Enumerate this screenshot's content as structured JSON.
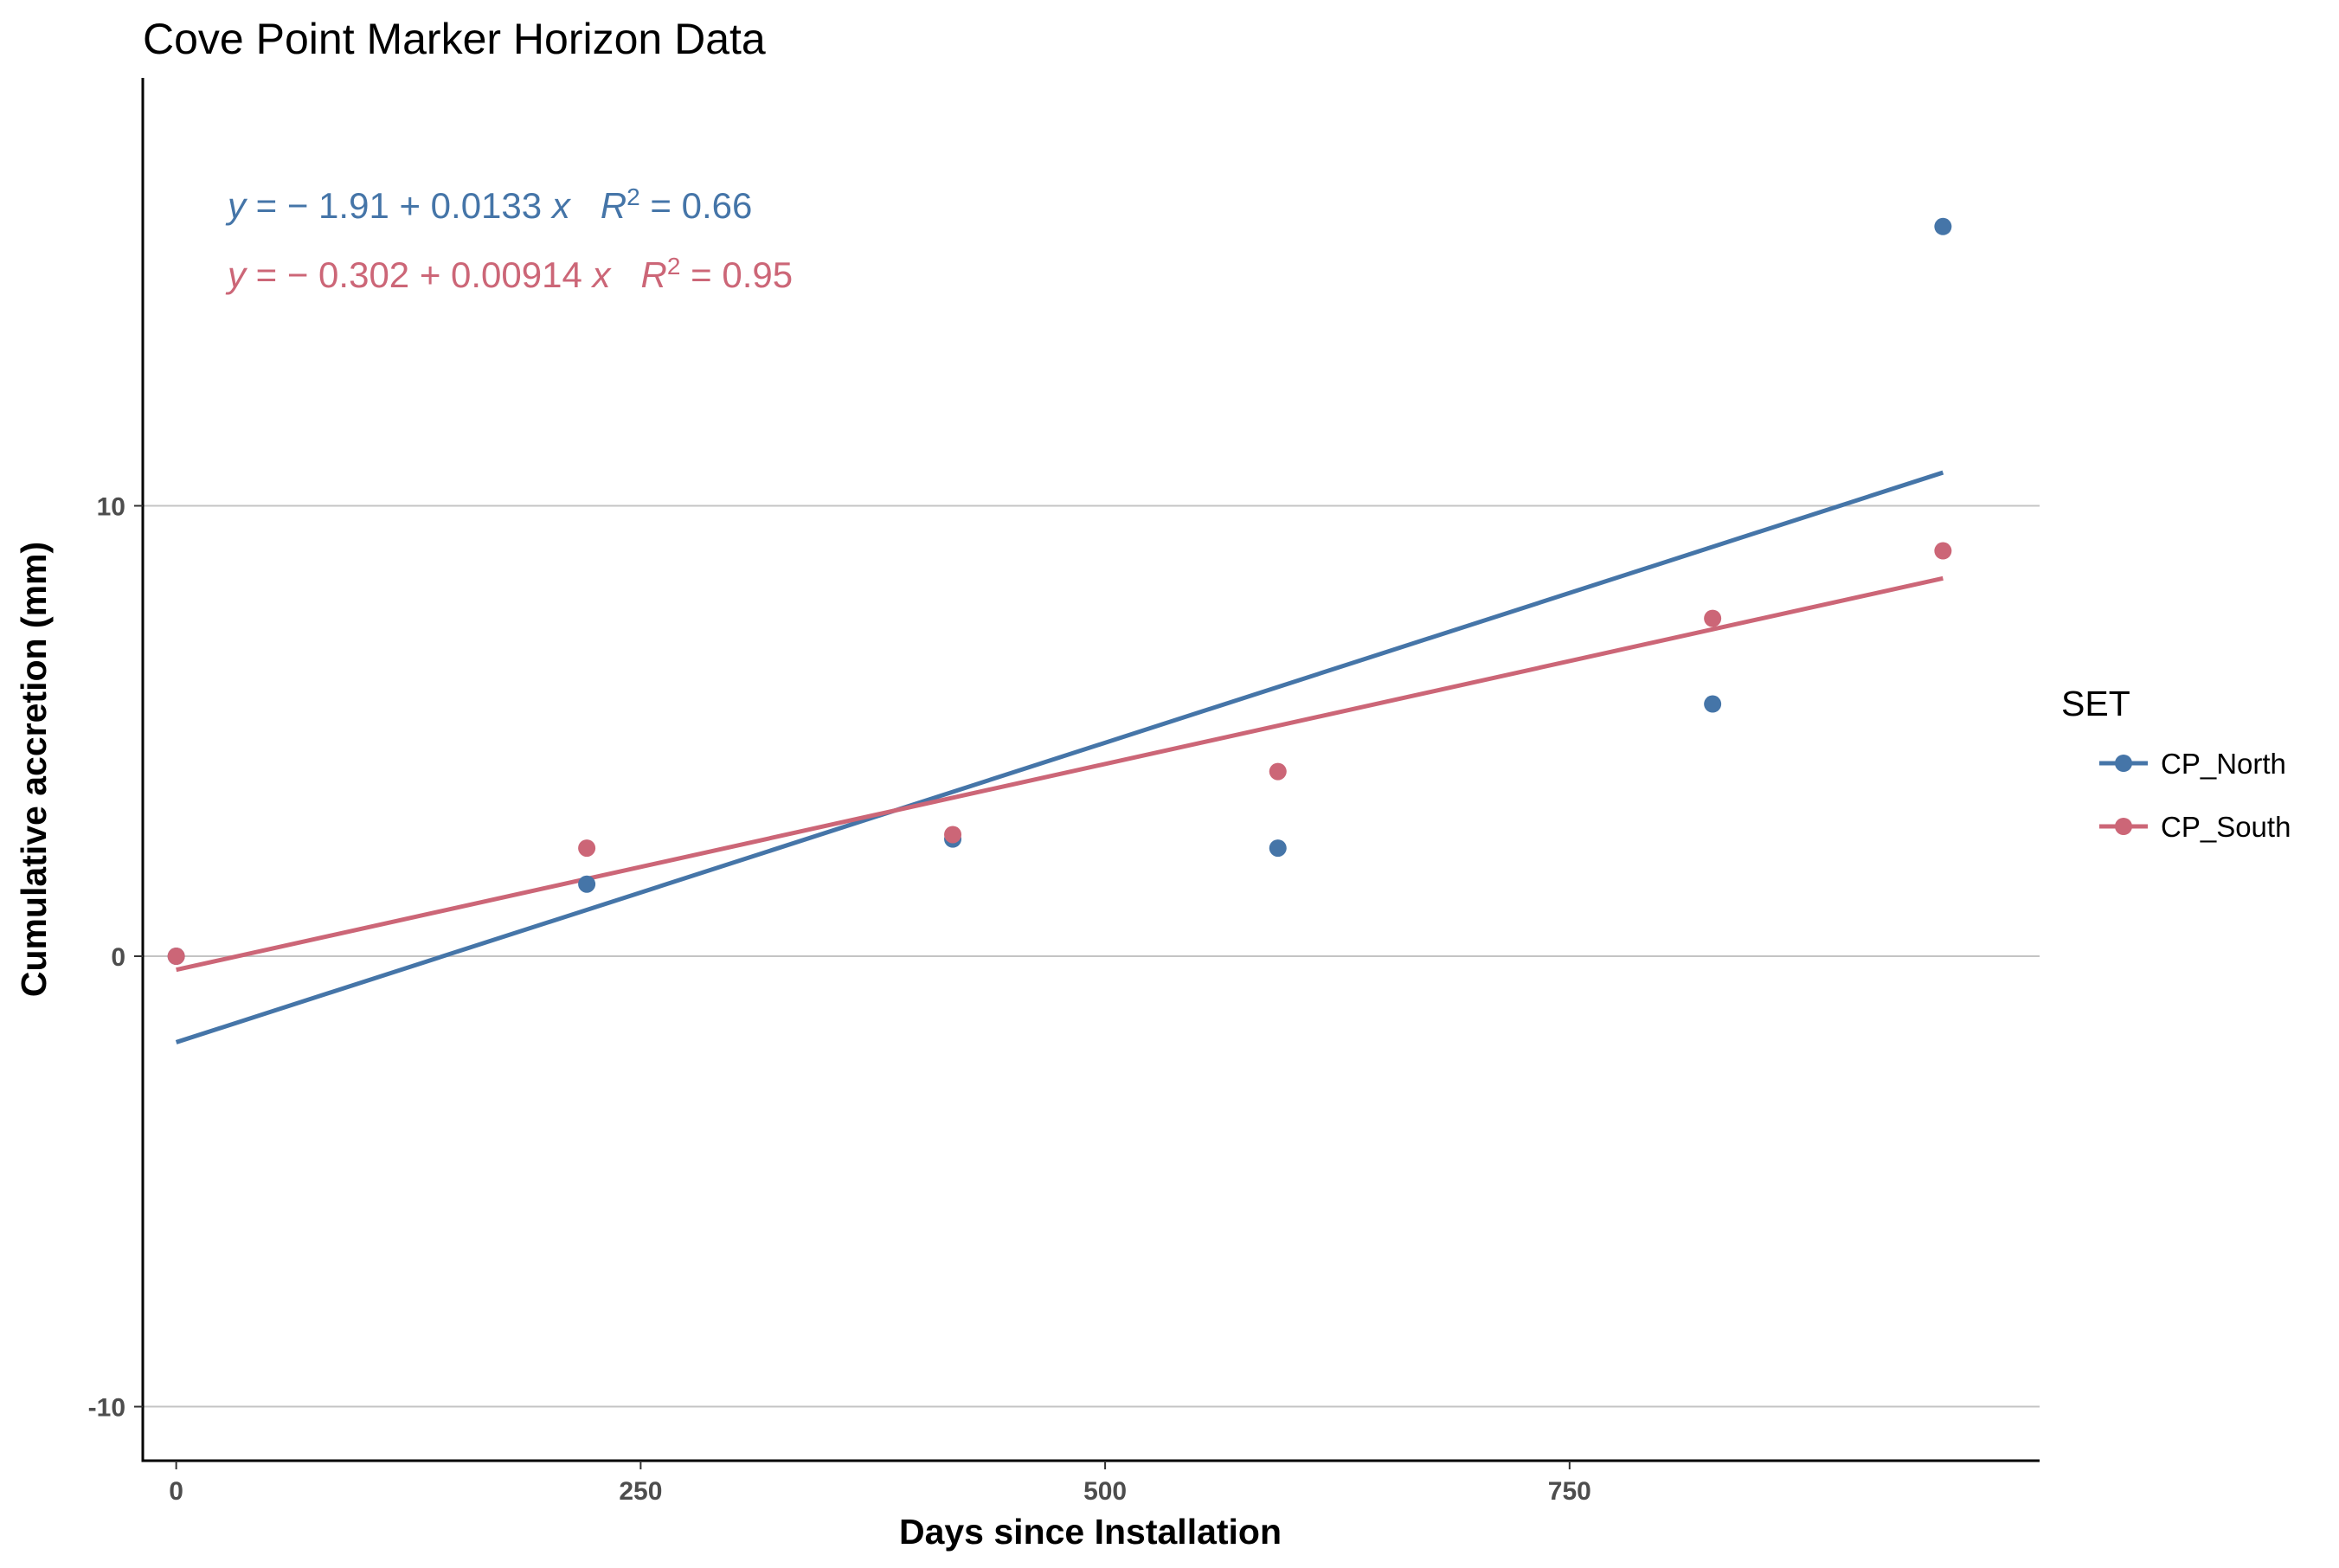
{
  "chart_data": {
    "type": "scatter",
    "title": "Cove Point Marker Horizon Data",
    "xlabel": "Days since Installation",
    "ylabel": "Cumulative accretion (mm)",
    "xlim": [
      -18,
      1003
    ],
    "ylim": [
      -11.2,
      19.5
    ],
    "x_ticks": [
      0,
      250,
      500,
      750
    ],
    "x_tick_labels": [
      "0",
      "250",
      "500",
      "750"
    ],
    "y_ticks": [
      -10,
      0,
      10
    ],
    "y_tick_labels": [
      "-10",
      "0",
      "10"
    ],
    "grid": "horizontal major lines only",
    "legend": {
      "title": "SET",
      "position": "right"
    },
    "series": [
      {
        "name": "CP_North",
        "color": "#4575a8",
        "x": [
          0,
          221,
          418,
          593,
          827,
          951
        ],
        "y": [
          0.0,
          1.6,
          2.6,
          2.4,
          5.6,
          16.2
        ],
        "fit": {
          "intercept": -1.91,
          "slope": 0.0133
        },
        "equation": {
          "lhs": "y",
          "eq": " = − 1.91 + 0.0133 ",
          "xvar": "x",
          "r": "R",
          "r_exp": "2",
          "r_val": " = 0.66"
        }
      },
      {
        "name": "CP_South",
        "color": "#cc6677",
        "x": [
          0,
          221,
          418,
          593,
          827,
          951
        ],
        "y": [
          0.0,
          2.4,
          2.7,
          4.1,
          7.5,
          9.0
        ],
        "fit": {
          "intercept": -0.302,
          "slope": 0.00914
        },
        "equation": {
          "lhs": "y",
          "eq": " = − 0.302 + 0.00914 ",
          "xvar": "x",
          "r": "R",
          "r_exp": "2",
          "r_val": " = 0.95"
        }
      }
    ]
  }
}
